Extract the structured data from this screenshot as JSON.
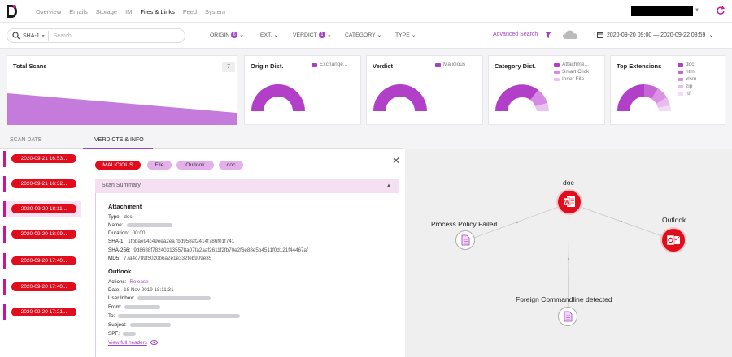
{
  "nav": {
    "items": [
      "Overview",
      "Emails",
      "Storage",
      "IM",
      "Files & Links",
      "Feed",
      "System"
    ],
    "active_index": 4
  },
  "filters": {
    "hash_type": "SHA-1",
    "search_placeholder": "Search...",
    "origin_label": "ORIGIN",
    "origin_count": "6",
    "ext_label": "EXT.",
    "verdict_label": "VERDICT",
    "verdict_count": "1",
    "category_label": "CATEGORY",
    "type_label": "TYPE",
    "advanced_search": "Advanced Search",
    "date_range": "2020-09-20 09:00 — 2020-09-22 08:59"
  },
  "cards": {
    "total_scans": {
      "title": "Total Scans",
      "count": "7"
    },
    "origin": {
      "title": "Origin Dist.",
      "legend": [
        "Exchange..."
      ]
    },
    "verdict": {
      "title": "Verdict",
      "legend": [
        "Malicious"
      ]
    },
    "category": {
      "title": "Category Dist.",
      "legend": [
        "Attachme...",
        "Smart Click",
        "Inner File"
      ]
    },
    "extensions": {
      "title": "Top Extensions",
      "legend": [
        "doc",
        "htm",
        "xlsm",
        "zip",
        "rtf"
      ]
    }
  },
  "tabs": {
    "scan_date": "SCAN DATE",
    "verdicts": "VERDICTS & INFO"
  },
  "scan_dates": [
    "2020-09-21 16:53...",
    "2020-09-21 16:32...",
    "2020-09-20 18:11...",
    "2020-09-20 18:09...",
    "2020-09-20 17:40...",
    "2020-09-20 17:40...",
    "2020-09-20 17:21..."
  ],
  "selected_date_index": 2,
  "chips": [
    "MALICIOUS",
    "File",
    "Outlook",
    "doc"
  ],
  "summary": {
    "header": "Scan Summary",
    "attachment_title": "Attachment",
    "type_label": "Type:",
    "type_value": "doc",
    "name_label": "Name:",
    "duration_label": "Duration:",
    "duration_value": "00:00",
    "sha1_label": "SHA-1:",
    "sha1_value": "1fbbae94c49eea2ea7bd958af2414f786f01f741",
    "sha256_label": "SHA-256:",
    "sha256_value": "9d8688f782403135578a07fa2aaf2611f2fb70e2f6e88e5b4511f0d121f44467af",
    "md5_label": "MD5:",
    "md5_value": "77a4c789f5020b6a2e1e332feb909e35",
    "outlook_title": "Outlook",
    "actions_label": "Actions:",
    "actions_value": "Release",
    "date_label": "Date:",
    "date_value": "18 Nov 2019 18:11:31",
    "inbox_label": "User Inbox:",
    "from_label": "From:",
    "to_label": "To:",
    "subject_label": "Subject:",
    "spf_label": "SPF:",
    "view_headers": "View full headers"
  },
  "graph": {
    "center": "doc",
    "left": "Process Policy Failed",
    "right": "Outlook",
    "bottom": "Foreign Commandline detected"
  },
  "colors": {
    "accent": "#a342c9",
    "danger": "#e10c1c",
    "magenta": "#c9159c"
  }
}
